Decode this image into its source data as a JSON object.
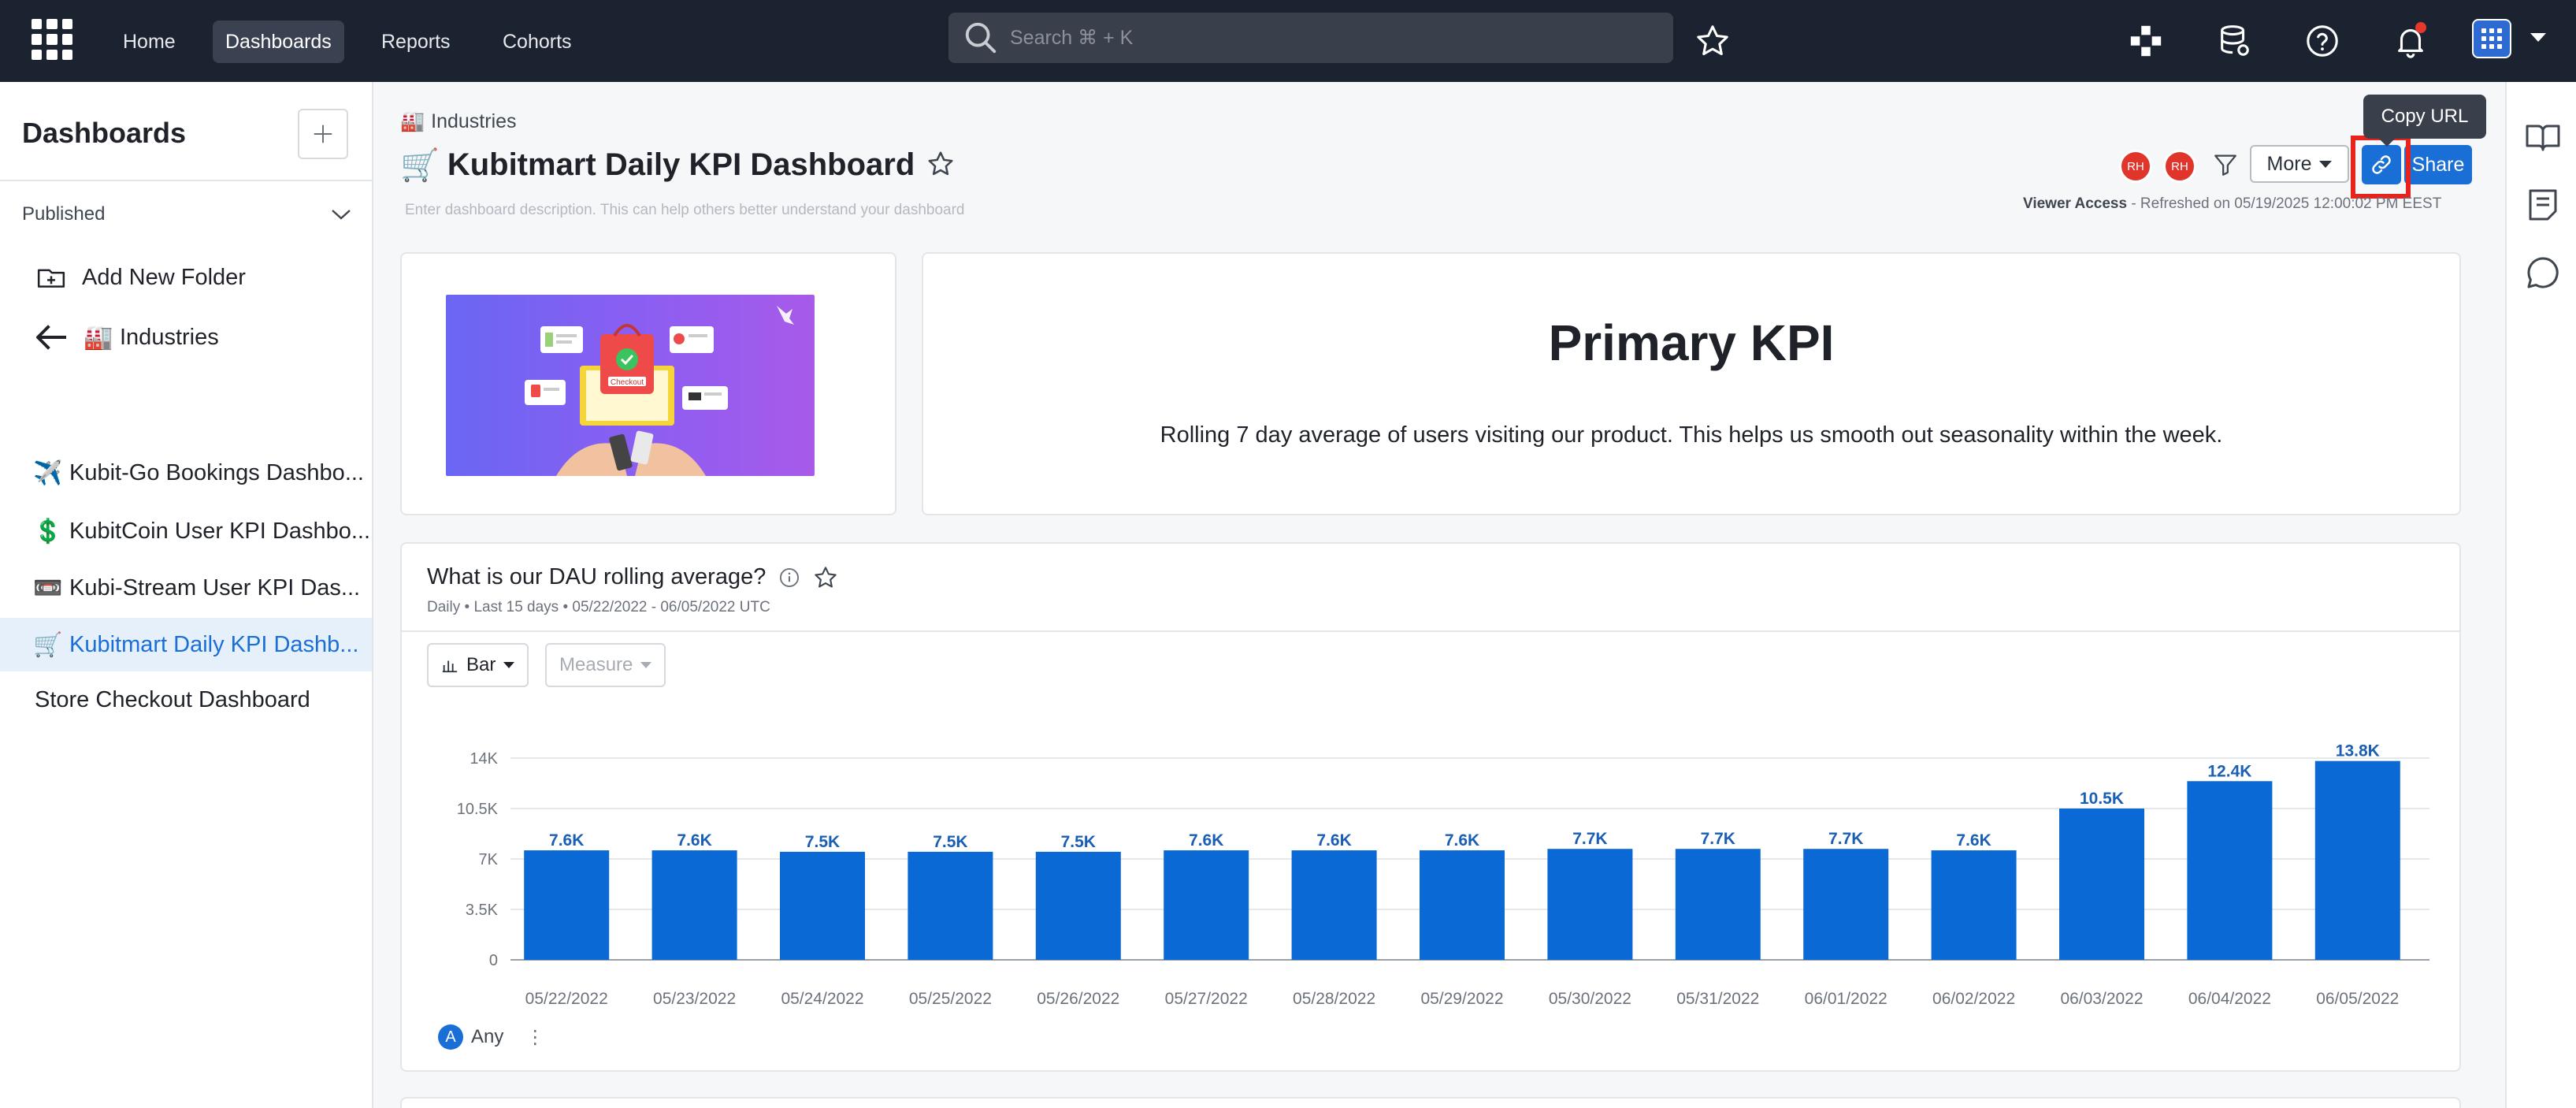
{
  "topnav": {
    "links": [
      "Home",
      "Dashboards",
      "Reports",
      "Cohorts"
    ],
    "active": "Dashboards",
    "search_placeholder": "Search ⌘ + K"
  },
  "sidebar": {
    "title": "Dashboards",
    "section": "Published",
    "items": [
      {
        "emoji": "",
        "label": "Add New Folder"
      },
      {
        "emoji": "🏭",
        "label": "Industries"
      },
      {
        "emoji": "✈️",
        "label": "Kubit-Go Bookings Dashbo..."
      },
      {
        "emoji": "💲",
        "label": "KubitCoin User KPI Dashbo..."
      },
      {
        "emoji": "📼",
        "label": "Kubi-Stream User KPI Das..."
      },
      {
        "emoji": "🛒",
        "label": "Kubitmart Daily KPI Dashb..."
      },
      {
        "emoji": "",
        "label": "Store Checkout Dashboard"
      }
    ]
  },
  "header": {
    "breadcrumb_emoji": "🏭",
    "breadcrumb": "Industries",
    "title_emoji": "🛒",
    "title": "Kubitmart Daily KPI Dashboard",
    "description_placeholder": "Enter dashboard description. This can help others better understand your dashboard",
    "avatars": [
      "RH",
      "RH"
    ],
    "more_label": "More",
    "share_label": "Share",
    "tooltip": "Copy URL",
    "access_label": "Viewer Access",
    "refreshed": " - Refreshed on 05/19/2025 12:00:02 PM EEST"
  },
  "text_card": {
    "title": "Primary KPI",
    "subtitle": "Rolling 7 day average of users visiting our product. This helps us smooth out seasonality within the week."
  },
  "hero": {
    "badge": "Checkout"
  },
  "chart_card": {
    "title": "What is our DAU rolling average?",
    "meta": "Daily • Last 15 days • 05/22/2022 - 06/05/2022 UTC",
    "type_label": "Bar",
    "measure_label": "Measure",
    "legend_badge": "A",
    "legend_label": "Any",
    "legend_menu": "⋮"
  },
  "colors": {
    "accent": "#1a6fd6",
    "bar": "#0b69d6",
    "nav_bg": "#1c2330",
    "highlight": "#e8231b",
    "avatar": "#e0352b"
  },
  "chart_data": {
    "type": "bar",
    "categories": [
      "05/22/2022",
      "05/23/2022",
      "05/24/2022",
      "05/25/2022",
      "05/26/2022",
      "05/27/2022",
      "05/28/2022",
      "05/29/2022",
      "05/30/2022",
      "05/31/2022",
      "06/01/2022",
      "06/02/2022",
      "06/03/2022",
      "06/04/2022",
      "06/05/2022"
    ],
    "values": [
      7600,
      7600,
      7500,
      7500,
      7500,
      7600,
      7600,
      7600,
      7700,
      7700,
      7700,
      7600,
      10500,
      12400,
      13800
    ],
    "data_labels": [
      "7.6K",
      "7.6K",
      "7.5K",
      "7.5K",
      "7.5K",
      "7.6K",
      "7.6K",
      "7.6K",
      "7.7K",
      "7.7K",
      "7.7K",
      "7.6K",
      "10.5K",
      "12.4K",
      "13.8K"
    ],
    "yticks": [
      0,
      3500,
      7000,
      10500,
      14000
    ],
    "ytick_labels": [
      "0",
      "3.5K",
      "7K",
      "10.5K",
      "14K"
    ],
    "ylim": [
      0,
      14000
    ],
    "grid": true,
    "title": "",
    "xlabel": "",
    "ylabel": ""
  }
}
